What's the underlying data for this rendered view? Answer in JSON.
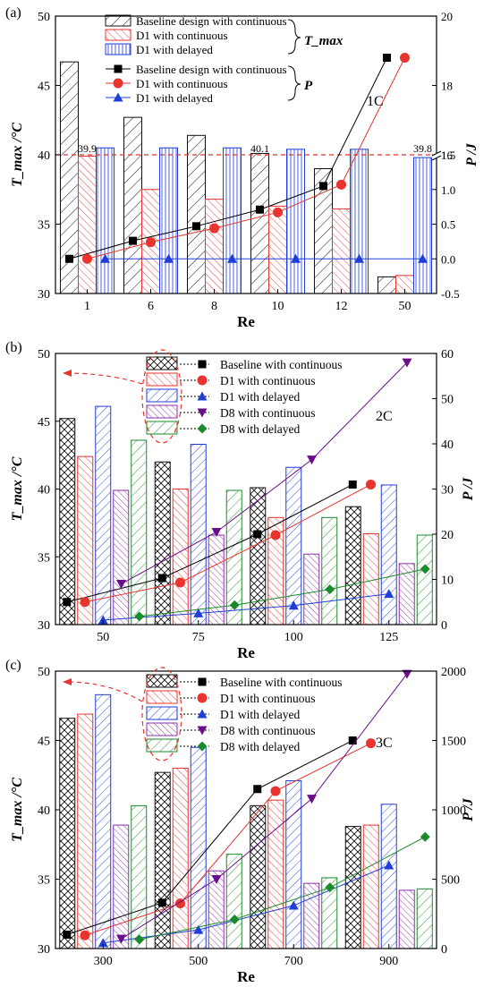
{
  "chart_data": [
    {
      "panel_label": "(a)",
      "type": "bar",
      "categories": [
        "1",
        "6",
        "8",
        "10",
        "12",
        "50"
      ],
      "xlabel": "Re",
      "ylabel_left": "T_max /°C",
      "ylabel_right": "P /J",
      "ylim_left": [
        30,
        50
      ],
      "yticks_left": [
        30,
        35,
        40,
        45,
        50
      ],
      "right_axis_broken": true,
      "yticks_right_lower": [
        "-0.5",
        "0.0",
        "0.5",
        "1.0",
        "1.5"
      ],
      "yticks_right_upper": [
        "16",
        "18",
        "20"
      ],
      "ref_line": {
        "value": 40,
        "style": "dashed",
        "color": "#e8332e"
      },
      "annotation": "1C",
      "bar_series": [
        {
          "name": "Baseline design with continuous",
          "group": "T_max",
          "pattern": "diag-black",
          "values": [
            46.7,
            42.7,
            41.4,
            40.1,
            39.0,
            31.2
          ]
        },
        {
          "name": "D1 with continuous",
          "group": "T_max",
          "pattern": "diag-red",
          "values": [
            39.9,
            37.5,
            36.8,
            36.3,
            36.1,
            31.3
          ]
        },
        {
          "name": "D1 with delayed",
          "group": "T_max",
          "pattern": "vert-blue",
          "values": [
            40.5,
            40.5,
            40.5,
            40.4,
            40.4,
            39.8
          ]
        }
      ],
      "bar_labels": [
        {
          "text": "39.9",
          "category": "1",
          "series": 1
        },
        {
          "text": "40.1",
          "category": "10",
          "series": 0
        },
        {
          "text": "39.8",
          "category": "50",
          "series": 2
        }
      ],
      "line_series": [
        {
          "name": "Baseline design with continuous",
          "group": "P",
          "marker": "square",
          "color": "#000000",
          "values": [
            0.0,
            0.26,
            0.47,
            0.71,
            1.05,
            18.8
          ]
        },
        {
          "name": "D1 with continuous",
          "group": "P",
          "marker": "circle",
          "color": "#e8332e",
          "values": [
            0.0,
            0.24,
            0.44,
            0.67,
            1.07,
            18.8
          ]
        },
        {
          "name": "D1 with delayed",
          "group": "P",
          "marker": "triangle",
          "color": "#1f3ed8",
          "values": [
            0.0,
            0.0,
            0.0,
            0.0,
            0.0,
            0.0
          ]
        }
      ],
      "legend_brace_labels": [
        "T_max",
        "P"
      ]
    },
    {
      "panel_label": "(b)",
      "type": "bar",
      "categories": [
        "50",
        "75",
        "100",
        "125"
      ],
      "xlabel": "Re",
      "ylabel_left": "T_max /°C",
      "ylabel_right": "P /J",
      "ylim_left": [
        30,
        50
      ],
      "yticks_left": [
        30,
        35,
        40,
        45,
        50
      ],
      "ylim_right": [
        0,
        60
      ],
      "yticks_right": [
        0,
        10,
        20,
        30,
        40,
        50,
        60
      ],
      "annotation": "2C",
      "bar_series": [
        {
          "name": "Baseline with continuous",
          "pattern": "cross-black",
          "values": [
            45.2,
            42.0,
            40.1,
            38.7
          ]
        },
        {
          "name": "D1 with continuous",
          "pattern": "diag-red",
          "values": [
            42.4,
            40.0,
            37.9,
            36.7
          ]
        },
        {
          "name": "D1 with delayed",
          "pattern": "diag-blue",
          "values": [
            46.1,
            43.3,
            41.6,
            40.3
          ]
        },
        {
          "name": "D8 with continuous",
          "pattern": "diag-purple",
          "values": [
            39.9,
            36.6,
            35.2,
            34.5
          ]
        },
        {
          "name": "D8 with delayed",
          "pattern": "back-green",
          "values": [
            43.6,
            39.9,
            37.9,
            36.6
          ]
        }
      ],
      "line_series": [
        {
          "name": "Baseline with continuous",
          "marker": "square",
          "color": "#000000",
          "values": [
            5.0,
            10.3,
            20.0,
            31.0
          ]
        },
        {
          "name": "D1 with continuous",
          "marker": "circle",
          "color": "#e8332e",
          "values": [
            5.0,
            9.3,
            19.8,
            31.0
          ]
        },
        {
          "name": "D1 with delayed",
          "marker": "triangle",
          "color": "#1f3ed8",
          "values": [
            1.0,
            2.5,
            4.2,
            6.8
          ]
        },
        {
          "name": "D8 with continuous",
          "marker": "triangle-down",
          "color": "#6a0d8a",
          "values": [
            9.0,
            20.5,
            36.5,
            58.0
          ]
        },
        {
          "name": "D8 with delayed",
          "marker": "diamond",
          "color": "#1a8a2a",
          "values": [
            1.8,
            4.3,
            7.8,
            12.3
          ]
        }
      ]
    },
    {
      "panel_label": "(c)",
      "type": "bar",
      "categories": [
        "300",
        "500",
        "700",
        "900"
      ],
      "xlabel": "Re",
      "ylabel_left": "T_max /°C",
      "ylabel_right": "P /J",
      "ylim_left": [
        30,
        50
      ],
      "yticks_left": [
        30,
        35,
        40,
        45,
        50
      ],
      "ylim_right": [
        0,
        2000
      ],
      "yticks_right": [
        0,
        500,
        1000,
        1500,
        2000
      ],
      "annotation": "3C",
      "bar_series": [
        {
          "name": "Baseline with continuous",
          "pattern": "cross-black",
          "values": [
            46.6,
            42.7,
            40.3,
            38.8
          ]
        },
        {
          "name": "D1 with continuous",
          "pattern": "diag-red",
          "values": [
            46.9,
            43.0,
            40.7,
            38.9
          ]
        },
        {
          "name": "D1 with delayed",
          "pattern": "diag-blue",
          "values": [
            48.3,
            44.5,
            42.1,
            40.4
          ]
        },
        {
          "name": "D8 with continuous",
          "pattern": "diag-purple",
          "values": [
            38.9,
            35.6,
            34.7,
            34.2
          ]
        },
        {
          "name": "D8 with delayed",
          "pattern": "back-green",
          "values": [
            40.3,
            36.8,
            35.1,
            34.3
          ]
        }
      ],
      "line_series": [
        {
          "name": "Baseline with continuous",
          "marker": "square",
          "color": "#000000",
          "values": [
            100,
            330,
            1150,
            1500
          ]
        },
        {
          "name": "D1 with continuous",
          "marker": "circle",
          "color": "#e8332e",
          "values": [
            95,
            325,
            1135,
            1480
          ]
        },
        {
          "name": "D1 with delayed",
          "marker": "triangle",
          "color": "#1f3ed8",
          "values": [
            40,
            135,
            310,
            600
          ]
        },
        {
          "name": "D8 with continuous",
          "marker": "triangle-down",
          "color": "#6a0d8a",
          "values": [
            70,
            500,
            1080,
            1980
          ]
        },
        {
          "name": "D8 with delayed",
          "marker": "diamond",
          "color": "#1a8a2a",
          "values": [
            65,
            210,
            440,
            805
          ]
        }
      ]
    }
  ]
}
